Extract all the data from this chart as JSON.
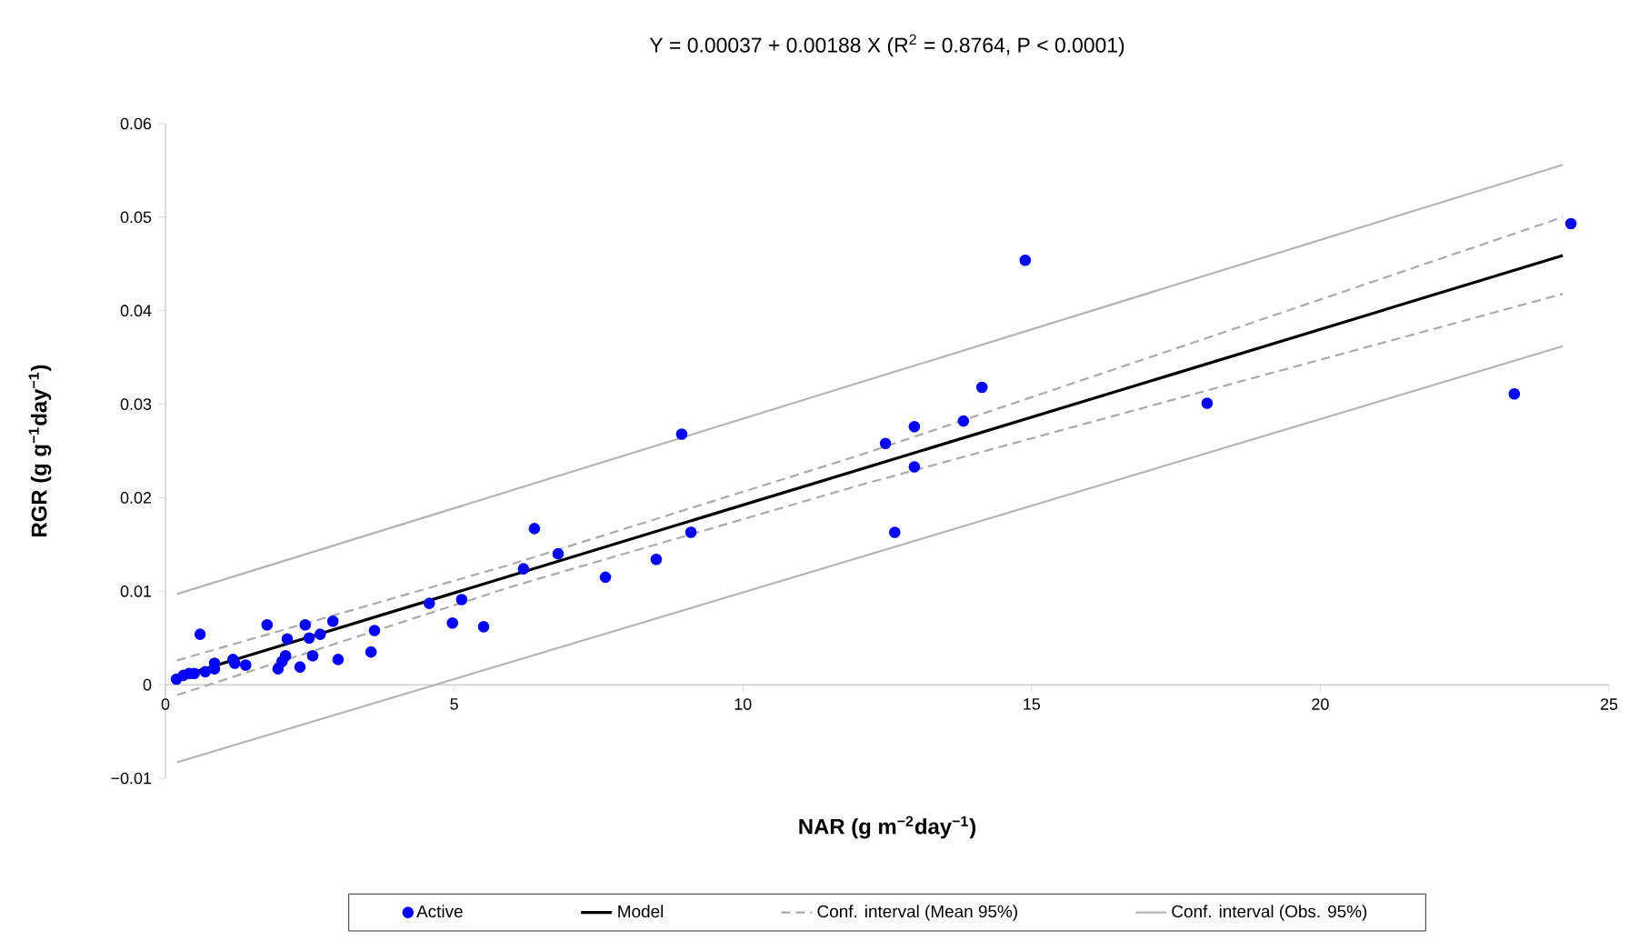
{
  "chart_data": {
    "type": "scatter",
    "title": "Y = 0.00037 + 0.00188 X (R$^{2}$ = 0.8764, P < 0.0001)",
    "xlabel": "NAR (g m$^{−2}$day$^{−1}$)",
    "ylabel": "RGR (g g$^{−1}$day$^{−1}$)",
    "xlim": [
      0,
      25
    ],
    "ylim": [
      -0.01,
      0.06
    ],
    "xticks": [
      0,
      5,
      10,
      15,
      20,
      25
    ],
    "yticks": [
      {
        "value": -0.01,
        "label": "−0.01"
      },
      0,
      0.01,
      0.02,
      0.03,
      0.04,
      0.05,
      0.06
    ],
    "grid": false,
    "legend": "bottom",
    "series": [
      {
        "name": "Active",
        "color": "#0000ff",
        "marker": "circle",
        "x": [
          0.19,
          0.31,
          0.41,
          0.5,
          0.6,
          0.69,
          0.85,
          0.85,
          1.17,
          1.2,
          1.39,
          1.76,
          1.95,
          2.02,
          2.08,
          2.11,
          2.33,
          2.42,
          2.49,
          2.55,
          2.68,
          2.99,
          2.9,
          3.56,
          3.62,
          4.57,
          4.97,
          5.13,
          5.51,
          6.2,
          6.39,
          6.8,
          7.62,
          8.5,
          8.94,
          9.1,
          12.47,
          12.63,
          12.97,
          12.97,
          13.82,
          14.14,
          14.89,
          18.04,
          23.36,
          24.34
        ],
        "values": [
          0.0006,
          0.001,
          0.0012,
          0.0012,
          0.0054,
          0.0014,
          0.0017,
          0.0023,
          0.0027,
          0.0023,
          0.0021,
          0.0064,
          0.0017,
          0.0025,
          0.0031,
          0.0049,
          0.0019,
          0.0064,
          0.005,
          0.0031,
          0.0054,
          0.0027,
          0.0068,
          0.0035,
          0.0058,
          0.0087,
          0.0066,
          0.0091,
          0.0062,
          0.0124,
          0.0167,
          0.014,
          0.0115,
          0.0134,
          0.0268,
          0.0163,
          0.0258,
          0.0163,
          0.0233,
          0.0276,
          0.0282,
          0.0318,
          0.0454,
          0.0301,
          0.0311,
          0.0493
        ]
      },
      {
        "name": "Model",
        "type": "line",
        "color": "#000000",
        "marker": "none",
        "line_style": "solid",
        "x": [
          0.2,
          24.2
        ],
        "values": [
          0.0008,
          0.0459
        ]
      },
      {
        "name": "Conf. interval (Mean 95%)",
        "type": "line",
        "color": "#aaaaaa",
        "marker": "none",
        "line_style": "dashed",
        "x": [
          0.2,
          6,
          12,
          18,
          24.2
        ],
        "values": [
          0.0026,
          0.0129,
          0.0245,
          0.037,
          0.05
        ]
      },
      {
        "type": "line",
        "color": "#aaaaaa",
        "marker": "none",
        "line_style": "dashed",
        "x": [
          0.2,
          6,
          12,
          18,
          24.2
        ],
        "values": [
          -0.0011,
          0.0105,
          0.0213,
          0.0314,
          0.0418
        ]
      },
      {
        "name": "Conf. interval (Obs. 95%)",
        "type": "line",
        "color": "#b4b4b4",
        "marker": "none",
        "line_style": "solid",
        "x": [
          0.2,
          24.2
        ],
        "values": [
          0.0097,
          0.0556
        ]
      },
      {
        "type": "line",
        "color": "#b4b4b4",
        "marker": "none",
        "line_style": "solid",
        "x": [
          0.2,
          24.2
        ],
        "values": [
          -0.0083,
          0.0362
        ]
      }
    ]
  }
}
